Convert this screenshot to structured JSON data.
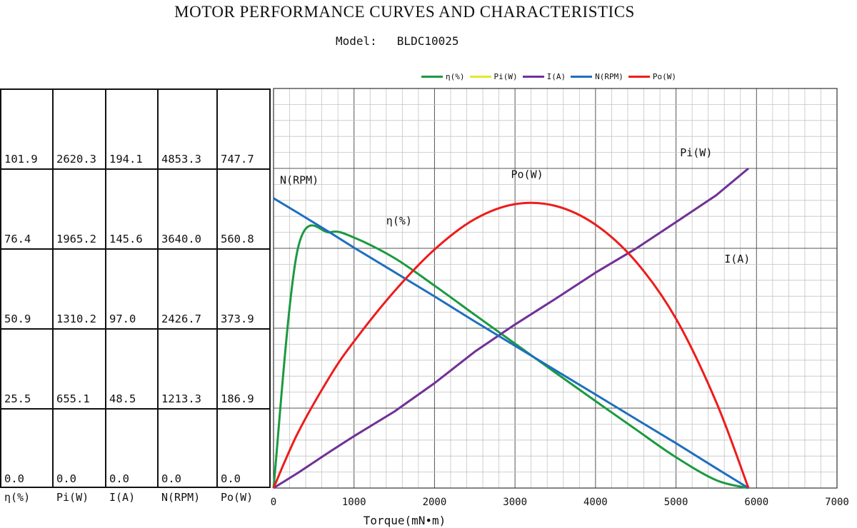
{
  "header": {
    "title": "MOTOR PERFORMANCE CURVES AND CHARACTERISTICS",
    "model_label": "Model:",
    "model_value": "BLDC10025"
  },
  "chart_data": {
    "type": "line",
    "x": [
      0,
      300,
      700,
      1000,
      1500,
      2000,
      2500,
      3000,
      3500,
      4000,
      4500,
      5000,
      5500,
      5900
    ],
    "xlabel": "Torque(mN•m)",
    "xlim": [
      0,
      7000
    ],
    "x_ticks": [
      "0",
      "1000",
      "2000",
      "3000",
      "4000",
      "5000",
      "6000",
      "7000"
    ],
    "grid": true,
    "legend_position": "top",
    "series": [
      {
        "name": "η(%)",
        "color": "#1a9a40",
        "scale_max": 127.3,
        "values": [
          0,
          76,
          81.5,
          79.8,
          73.3,
          64.5,
          55.2,
          46.0,
          36.8,
          27.7,
          18.7,
          9.8,
          2.5,
          0
        ]
      },
      {
        "name": "Pi(W)",
        "color": "#e6e62a",
        "scale_max": 3275.4,
        "values": [
          0,
          123,
          298,
          425,
          626,
          859,
          1118,
          1340,
          1550,
          1765,
          1962,
          2180,
          2400,
          2620
        ]
      },
      {
        "name": "I(A)",
        "color": "#7030a0",
        "scale_max": 242.6,
        "values": [
          0,
          9.1,
          22.1,
          31.5,
          46.4,
          63.7,
          82.8,
          99.3,
          114.8,
          130.8,
          145.3,
          161.5,
          177.8,
          194.1
        ]
      },
      {
        "name": "N(RPM)",
        "color": "#1e6fbf",
        "scale_max": 6066.6,
        "values": [
          4400,
          4180,
          3880,
          3650,
          3280,
          2910,
          2530,
          2160,
          1790,
          1420,
          1050,
          680,
          300,
          0
        ]
      },
      {
        "name": "Po(W)",
        "color": "#ee1c1c",
        "scale_max": 934.6,
        "values": [
          0,
          128,
          261,
          343,
          460,
          558,
          629,
          664,
          660,
          616,
          530,
          396,
          201,
          0
        ]
      }
    ],
    "curve_labels": [
      {
        "series": 3,
        "text": "N(RPM)",
        "x": 80,
        "y": 4620
      },
      {
        "series": 0,
        "text": "η(%)",
        "x": 1400,
        "y": 84
      },
      {
        "series": 4,
        "text": "Po(W)",
        "x": 2950,
        "y": 725
      },
      {
        "series": 1,
        "text": "Pi(W)",
        "x": 5050,
        "y": 2720
      },
      {
        "series": 2,
        "text": "I(A)",
        "x": 5600,
        "y": 137
      }
    ]
  },
  "scale_table": {
    "columns": [
      {
        "label": "η(%)",
        "values": [
          "101.9",
          "76.4",
          "50.9",
          "25.5",
          "0.0"
        ]
      },
      {
        "label": "Pi(W)",
        "values": [
          "2620.3",
          "1965.2",
          "1310.2",
          "655.1",
          "0.0"
        ]
      },
      {
        "label": "I(A)",
        "values": [
          "194.1",
          "145.6",
          "97.0",
          "48.5",
          "0.0"
        ]
      },
      {
        "label": "N(RPM)",
        "values": [
          "4853.3",
          "3640.0",
          "2426.7",
          "1213.3",
          "0.0"
        ]
      },
      {
        "label": "Po(W)",
        "values": [
          "747.7",
          "560.8",
          "373.9",
          "186.9",
          "0.0"
        ]
      }
    ]
  }
}
